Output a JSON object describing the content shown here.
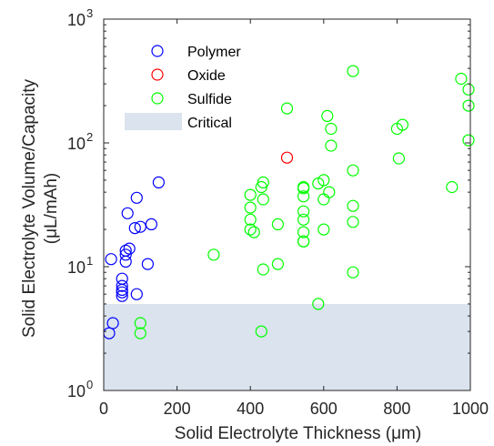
{
  "chart_data": {
    "type": "scatter",
    "xlabel": "Solid Electrolyte Thickness (μm)",
    "ylabel_line1": "Solid Electrolyte Volume/Capacity",
    "ylabel_line2": "(μL/mAh)",
    "xlim": [
      0,
      1000
    ],
    "ylim": [
      1,
      1000
    ],
    "yscale": "log",
    "x_ticks": [
      {
        "value": 0,
        "label": "0"
      },
      {
        "value": 200,
        "label": "200"
      },
      {
        "value": 400,
        "label": "400"
      },
      {
        "value": 600,
        "label": "600"
      },
      {
        "value": 800,
        "label": "800"
      },
      {
        "value": 1000,
        "label": "1000"
      }
    ],
    "y_ticks": [
      {
        "value": 1,
        "base": "10",
        "exp": "0"
      },
      {
        "value": 10,
        "base": "10",
        "exp": "1"
      },
      {
        "value": 100,
        "base": "10",
        "exp": "2"
      },
      {
        "value": 1000,
        "base": "10",
        "exp": "3"
      }
    ],
    "grid": false,
    "legend_position": "top-left",
    "critical_region": {
      "name": "Critical",
      "y_min": 1,
      "y_max": 5,
      "color": "#dae3ee"
    },
    "series": [
      {
        "name": "Polymer",
        "color": "#0000ff",
        "points": [
          [
            15,
            2.9
          ],
          [
            25,
            3.5
          ],
          [
            20,
            11.5
          ],
          [
            50,
            5.8
          ],
          [
            50,
            6.2
          ],
          [
            50,
            6.5
          ],
          [
            50,
            7.0
          ],
          [
            50,
            8.0
          ],
          [
            60,
            11.0
          ],
          [
            60,
            12.5
          ],
          [
            70,
            14.0
          ],
          [
            60,
            13.5
          ],
          [
            65,
            27.0
          ],
          [
            85,
            20.5
          ],
          [
            90,
            36.0
          ],
          [
            90,
            6.0
          ],
          [
            100,
            21.0
          ],
          [
            120,
            10.5
          ],
          [
            130,
            22.0
          ],
          [
            150,
            48.0
          ]
        ]
      },
      {
        "name": "Oxide",
        "color": "#ff0000",
        "points": [
          [
            500,
            76.0
          ]
        ]
      },
      {
        "name": "Sulfide",
        "color": "#00ff00",
        "points": [
          [
            100,
            3.5
          ],
          [
            100,
            2.9
          ],
          [
            300,
            12.5
          ],
          [
            430,
            3.0
          ],
          [
            400,
            38.0
          ],
          [
            400,
            30.0
          ],
          [
            400,
            24.0
          ],
          [
            400,
            20.0
          ],
          [
            410,
            19.0
          ],
          [
            430,
            44.0
          ],
          [
            435,
            48.0
          ],
          [
            435,
            35.0
          ],
          [
            435,
            9.5
          ],
          [
            475,
            22.0
          ],
          [
            475,
            10.5
          ],
          [
            500,
            190.0
          ],
          [
            545,
            44.0
          ],
          [
            545,
            43.0
          ],
          [
            545,
            37.0
          ],
          [
            545,
            28.0
          ],
          [
            545,
            24.0
          ],
          [
            545,
            19.0
          ],
          [
            545,
            16.0
          ],
          [
            545,
            16.0
          ],
          [
            585,
            5.0
          ],
          [
            585,
            47.0
          ],
          [
            600,
            50.0
          ],
          [
            600,
            35.0
          ],
          [
            600,
            20.0
          ],
          [
            610,
            165.0
          ],
          [
            615,
            40.0
          ],
          [
            620,
            130.0
          ],
          [
            620,
            95.0
          ],
          [
            680,
            380.0
          ],
          [
            680,
            60.0
          ],
          [
            680,
            31.0
          ],
          [
            680,
            23.0
          ],
          [
            680,
            9.0
          ],
          [
            800,
            130.0
          ],
          [
            805,
            75.0
          ],
          [
            815,
            140.0
          ],
          [
            950,
            44.0
          ],
          [
            975,
            330.0
          ],
          [
            995,
            270.0
          ],
          [
            995,
            200.0
          ],
          [
            995,
            105.0
          ]
        ]
      }
    ]
  }
}
